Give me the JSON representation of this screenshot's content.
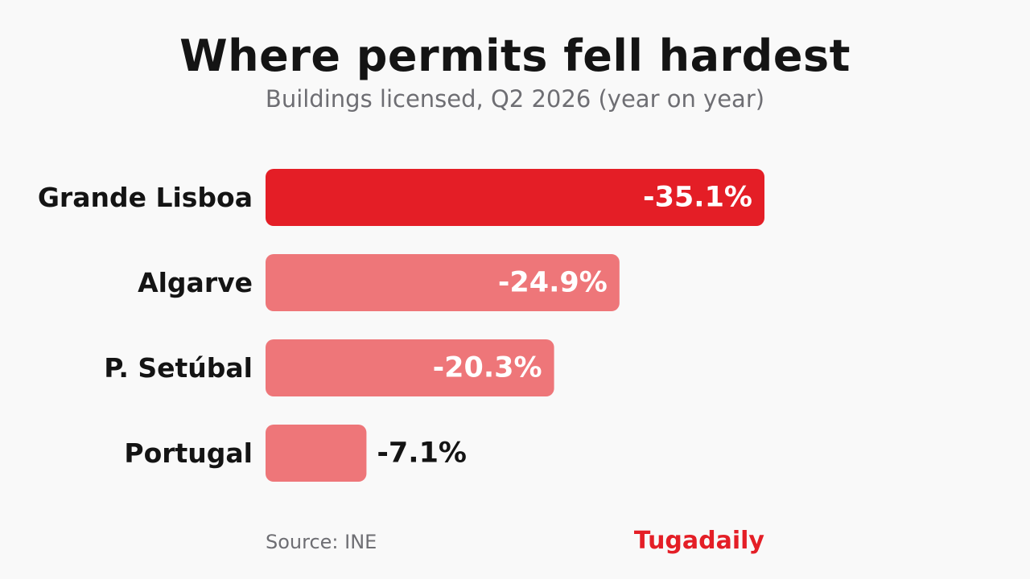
{
  "chart_data": {
    "type": "bar",
    "orientation": "horizontal",
    "title": "Where permits fell hardest",
    "subtitle": "Buildings licensed, Q2 2026 (year on year)",
    "categories": [
      "Grande Lisboa",
      "Algarve",
      "P. Setúbal",
      "Portugal"
    ],
    "values": [
      -35.1,
      -24.9,
      -20.3,
      -7.1
    ],
    "value_labels": [
      "-35.1%",
      "-24.9%",
      "-20.3%",
      "-7.1%"
    ],
    "unit": "%",
    "bar_colors": [
      "#e41e26",
      "#ee7679",
      "#ee7679",
      "#ee7679"
    ],
    "grid": false,
    "legend": "none"
  },
  "footer": {
    "source": "Source: INE",
    "brand": "Tugadaily"
  },
  "colors": {
    "accent": "#e41e26",
    "bar_muted": "#ee7679",
    "text_dark": "#141414",
    "text_muted": "#6e6e73",
    "background": "#f9f9f9",
    "label_on_bar": "#ffffff"
  }
}
